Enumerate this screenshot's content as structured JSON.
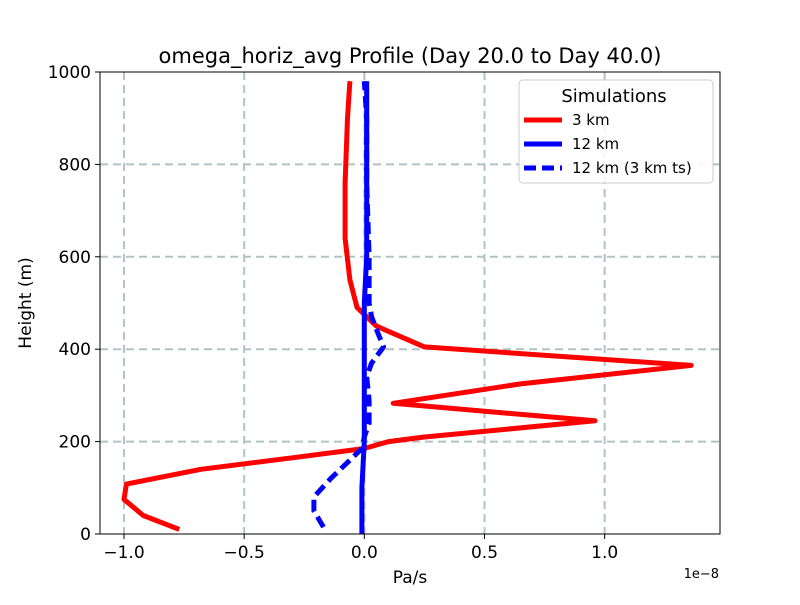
{
  "chart_data": {
    "type": "line",
    "title": "omega_horiz_avg Profile (Day 20.0 to Day 40.0)",
    "xlabel": "Pa/s",
    "ylabel": "Height (m)",
    "x_scale_label": "1e−8",
    "xlim": [
      -1.1,
      1.48
    ],
    "ylim": [
      0,
      1000
    ],
    "xticks": [
      -1.0,
      -0.5,
      0.0,
      0.5,
      1.0
    ],
    "xtick_labels": [
      "−1.0",
      "−0.5",
      "0.0",
      "0.5",
      "1.0"
    ],
    "yticks": [
      0,
      200,
      400,
      600,
      800,
      1000
    ],
    "ytick_labels": [
      "0",
      "200",
      "400",
      "600",
      "800",
      "1000"
    ],
    "grid": true,
    "legend": {
      "title": "Simulations",
      "position": "top-right"
    },
    "series": [
      {
        "name": "3 km",
        "color": "#ff0000",
        "style": "solid",
        "points": [
          [
            -0.77,
            10
          ],
          [
            -0.92,
            40
          ],
          [
            -1.0,
            75
          ],
          [
            -0.99,
            108
          ],
          [
            -0.68,
            140
          ],
          [
            -0.3,
            165
          ],
          [
            0.0,
            185
          ],
          [
            0.1,
            200
          ],
          [
            0.25,
            210
          ],
          [
            0.96,
            245
          ],
          [
            0.12,
            283
          ],
          [
            0.65,
            325
          ],
          [
            1.36,
            365
          ],
          [
            0.25,
            405
          ],
          [
            0.05,
            450
          ],
          [
            -0.03,
            490
          ],
          [
            -0.06,
            550
          ],
          [
            -0.08,
            640
          ],
          [
            -0.08,
            760
          ],
          [
            -0.07,
            900
          ],
          [
            -0.06,
            980
          ]
        ]
      },
      {
        "name": "12 km",
        "color": "#0000ff",
        "style": "solid",
        "points": [
          [
            -0.01,
            0
          ],
          [
            -0.01,
            100
          ],
          [
            0.0,
            200
          ],
          [
            0.0,
            300
          ],
          [
            0.0,
            400
          ],
          [
            0.0,
            500
          ],
          [
            0.01,
            600
          ],
          [
            0.01,
            800
          ],
          [
            0.01,
            980
          ]
        ]
      },
      {
        "name": "12 km (3 km ts)",
        "color": "#0000ff",
        "style": "dashed",
        "points": [
          [
            -0.17,
            15
          ],
          [
            -0.21,
            50
          ],
          [
            -0.21,
            80
          ],
          [
            -0.14,
            120
          ],
          [
            -0.07,
            155
          ],
          [
            -0.01,
            185
          ],
          [
            0.0,
            210
          ],
          [
            0.02,
            240
          ],
          [
            0.02,
            290
          ],
          [
            0.01,
            340
          ],
          [
            0.03,
            370
          ],
          [
            0.08,
            405
          ],
          [
            0.06,
            430
          ],
          [
            0.03,
            470
          ],
          [
            0.02,
            500
          ],
          [
            0.02,
            600
          ],
          [
            0.01,
            760
          ],
          [
            0.01,
            900
          ],
          [
            0.0,
            980
          ]
        ]
      }
    ]
  }
}
